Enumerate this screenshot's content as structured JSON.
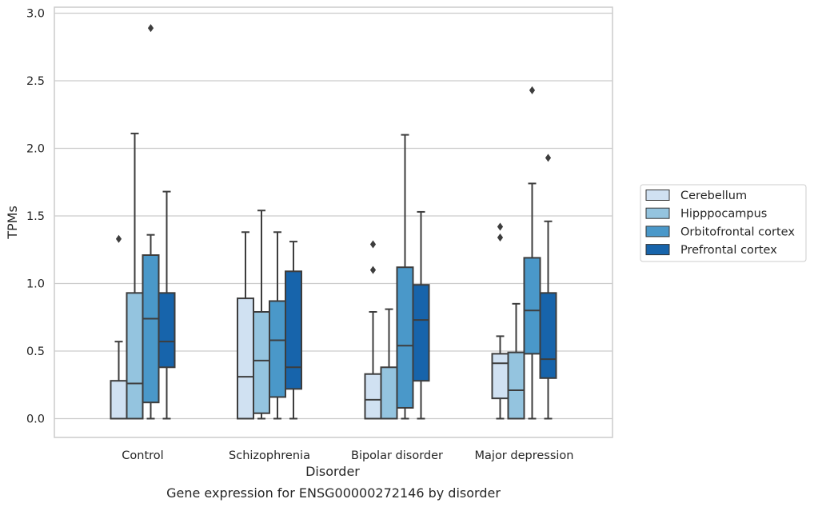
{
  "chart_data": {
    "type": "boxplot",
    "title": "",
    "caption": "Gene expression for ENSG00000272146 by disorder",
    "xlabel": "Disorder",
    "ylabel": "TPMs",
    "ylim": [
      -0.14,
      3.04
    ],
    "yticks": [
      0.0,
      0.5,
      1.0,
      1.5,
      2.0,
      2.5,
      3.0
    ],
    "ytick_labels": [
      "0.0",
      "0.5",
      "1.0",
      "1.5",
      "2.0",
      "2.5",
      "3.0"
    ],
    "grid": "horizontal",
    "legend_position": "right",
    "categories": [
      "Control",
      "Schizophrenia",
      "Bipolar disorder",
      "Major depression"
    ],
    "series": [
      {
        "name": "Cerebellum",
        "color": "#d0e1f2",
        "boxes": [
          {
            "whislo": 0.0,
            "q1": 0.0,
            "med": 0.0,
            "q3": 0.28,
            "whishi": 0.57,
            "fliers": [
              1.33
            ]
          },
          {
            "whislo": 0.0,
            "q1": 0.0,
            "med": 0.31,
            "q3": 0.89,
            "whishi": 1.38,
            "fliers": []
          },
          {
            "whislo": 0.0,
            "q1": 0.0,
            "med": 0.14,
            "q3": 0.33,
            "whishi": 0.79,
            "fliers": [
              1.1,
              1.29
            ]
          },
          {
            "whislo": 0.0,
            "q1": 0.15,
            "med": 0.41,
            "q3": 0.48,
            "whishi": 0.61,
            "fliers": [
              1.34,
              1.42
            ]
          }
        ]
      },
      {
        "name": "Hipppocampus",
        "color": "#94c4df",
        "boxes": [
          {
            "whislo": 0.0,
            "q1": 0.0,
            "med": 0.26,
            "q3": 0.93,
            "whishi": 2.11,
            "fliers": []
          },
          {
            "whislo": 0.0,
            "q1": 0.04,
            "med": 0.43,
            "q3": 0.79,
            "whishi": 1.54,
            "fliers": []
          },
          {
            "whislo": 0.0,
            "q1": 0.0,
            "med": 0.0,
            "q3": 0.38,
            "whishi": 0.81,
            "fliers": []
          },
          {
            "whislo": 0.0,
            "q1": 0.0,
            "med": 0.21,
            "q3": 0.49,
            "whishi": 0.85,
            "fliers": []
          }
        ]
      },
      {
        "name": "Orbitofrontal cortex",
        "color": "#4a98c9",
        "boxes": [
          {
            "whislo": 0.0,
            "q1": 0.12,
            "med": 0.74,
            "q3": 1.21,
            "whishi": 1.36,
            "fliers": [
              2.89
            ]
          },
          {
            "whislo": 0.0,
            "q1": 0.16,
            "med": 0.58,
            "q3": 0.87,
            "whishi": 1.38,
            "fliers": []
          },
          {
            "whislo": 0.0,
            "q1": 0.08,
            "med": 0.54,
            "q3": 1.12,
            "whishi": 2.1,
            "fliers": []
          },
          {
            "whislo": 0.0,
            "q1": 0.48,
            "med": 0.8,
            "q3": 1.19,
            "whishi": 1.74,
            "fliers": [
              2.43
            ]
          }
        ]
      },
      {
        "name": "Prefrontal cortex",
        "color": "#1764ab",
        "boxes": [
          {
            "whislo": 0.0,
            "q1": 0.38,
            "med": 0.57,
            "q3": 0.93,
            "whishi": 1.68,
            "fliers": []
          },
          {
            "whislo": 0.0,
            "q1": 0.22,
            "med": 0.38,
            "q3": 1.09,
            "whishi": 1.31,
            "fliers": []
          },
          {
            "whislo": 0.0,
            "q1": 0.28,
            "med": 0.73,
            "q3": 0.99,
            "whishi": 1.53,
            "fliers": []
          },
          {
            "whislo": 0.0,
            "q1": 0.3,
            "med": 0.44,
            "q3": 0.93,
            "whishi": 1.46,
            "fliers": [
              1.93
            ]
          }
        ]
      }
    ]
  }
}
